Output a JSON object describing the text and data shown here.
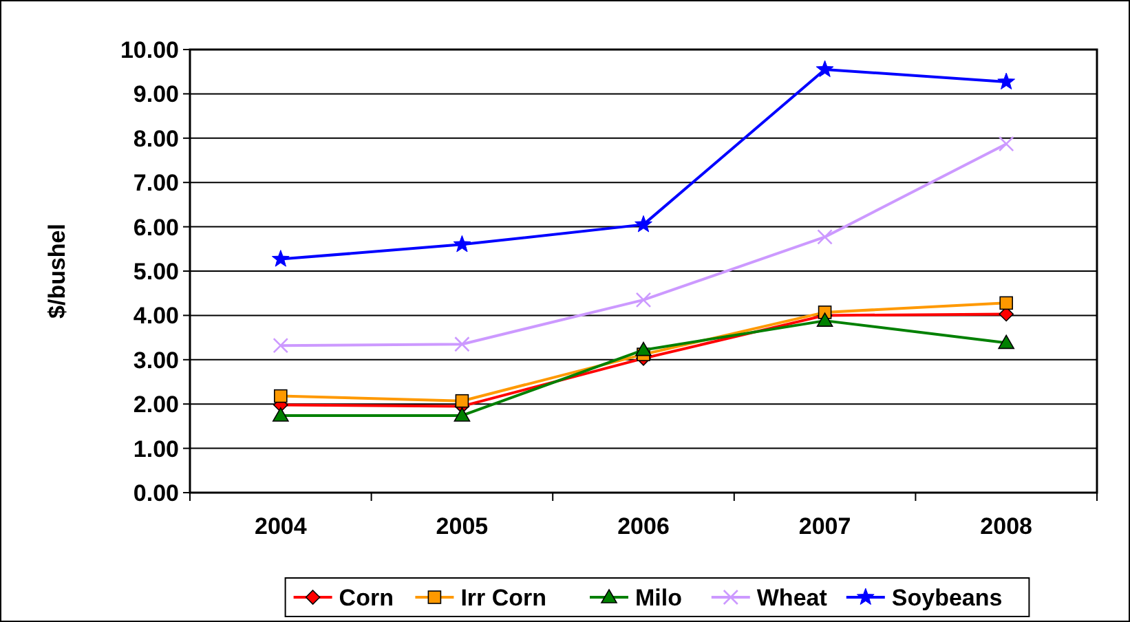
{
  "chart_data": {
    "type": "line",
    "ylabel": "$/bushel",
    "categories": [
      "2004",
      "2005",
      "2006",
      "2007",
      "2008"
    ],
    "series": [
      {
        "name": "Corn",
        "color": "#ff0000",
        "marker": "diamond",
        "values": [
          1.98,
          1.95,
          3.03,
          4.0,
          4.03
        ]
      },
      {
        "name": "Irr Corn",
        "color": "#ff9900",
        "marker": "square",
        "values": [
          2.18,
          2.07,
          3.12,
          4.07,
          4.28
        ]
      },
      {
        "name": "Milo",
        "color": "#008000",
        "marker": "triangle",
        "values": [
          1.74,
          1.74,
          3.22,
          3.88,
          3.38
        ]
      },
      {
        "name": "Wheat",
        "color": "#cc99ff",
        "marker": "cross",
        "values": [
          3.32,
          3.35,
          4.35,
          5.77,
          7.87
        ]
      },
      {
        "name": "Soybeans",
        "color": "#0000ff",
        "marker": "star",
        "values": [
          5.27,
          5.6,
          6.05,
          9.55,
          9.27
        ]
      }
    ],
    "ylim": [
      0,
      10
    ],
    "yticks": [
      {
        "value": 0,
        "label": "0.00"
      },
      {
        "value": 1,
        "label": "1.00"
      },
      {
        "value": 2,
        "label": "2.00"
      },
      {
        "value": 3,
        "label": "3.00"
      },
      {
        "value": 4,
        "label": "4.00"
      },
      {
        "value": 5,
        "label": "5.00"
      },
      {
        "value": 6,
        "label": "6.00"
      },
      {
        "value": 7,
        "label": "7.00"
      },
      {
        "value": 8,
        "label": "8.00"
      },
      {
        "value": 9,
        "label": "9.00"
      },
      {
        "value": 10,
        "label": "10.00"
      }
    ],
    "grid": "y",
    "legend": "bottom"
  }
}
